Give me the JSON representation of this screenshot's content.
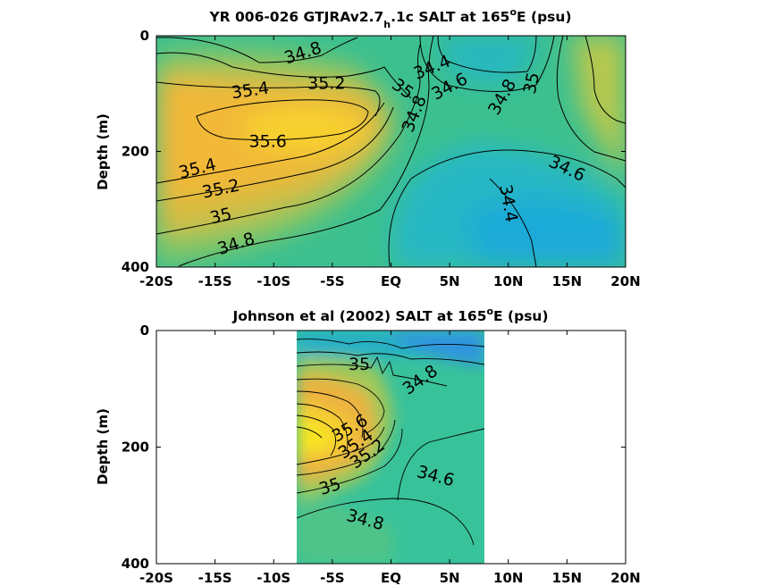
{
  "chart_data": [
    {
      "type": "heatmap",
      "title_main": "YR 006-026 GTJRAv2.7",
      "title_sub": "h",
      "title_mid": ".1c SALT at 165",
      "title_sup": "o",
      "title_end": "E (psu)",
      "ylabel": "Depth (m)",
      "xlim": [
        -20,
        20
      ],
      "ylim": [
        0,
        400
      ],
      "y_reversed": true,
      "x_ticks": [
        -20,
        -15,
        -10,
        -5,
        0,
        5,
        10,
        15,
        20
      ],
      "x_tick_labels": [
        "-20S",
        "-15S",
        "-10S",
        "-5S",
        "EQ",
        "5N",
        "10N",
        "15N",
        "20N"
      ],
      "y_ticks": [
        0,
        200,
        400
      ],
      "y_tick_labels": [
        "0",
        "200",
        "400"
      ],
      "data_extent_x": [
        -20,
        20
      ],
      "colormap": "parula",
      "contour_interval": 0.2,
      "contour_labels": [
        {
          "x": -7.5,
          "y": 30,
          "text": "34.8",
          "angle": -18
        },
        {
          "x": -12,
          "y": 95,
          "text": "35.4",
          "angle": -8
        },
        {
          "x": -5.5,
          "y": 83,
          "text": "35.2",
          "angle": 0
        },
        {
          "x": 3.5,
          "y": 55,
          "text": "34.4",
          "angle": -22
        },
        {
          "x": 5,
          "y": 88,
          "text": "34.6",
          "angle": -28
        },
        {
          "x": 1,
          "y": 92,
          "text": "35",
          "angle": 35
        },
        {
          "x": 9.5,
          "y": 106,
          "text": "34.8",
          "angle": -60
        },
        {
          "x": 12,
          "y": 82,
          "text": "35",
          "angle": -78
        },
        {
          "x": 2,
          "y": 135,
          "text": "34.8",
          "angle": -68
        },
        {
          "x": -10.5,
          "y": 183,
          "text": "35.6",
          "angle": 0
        },
        {
          "x": -16.5,
          "y": 230,
          "text": "35.4",
          "angle": -14
        },
        {
          "x": -14.5,
          "y": 265,
          "text": "35.2",
          "angle": -12
        },
        {
          "x": -14.5,
          "y": 312,
          "text": "35",
          "angle": -14
        },
        {
          "x": -13.2,
          "y": 360,
          "text": "34.8",
          "angle": -18
        },
        {
          "x": 15,
          "y": 230,
          "text": "34.6",
          "angle": 25
        },
        {
          "x": 10,
          "y": 290,
          "text": "34.4",
          "angle": 80
        }
      ],
      "colored_regions": [
        {
          "name": "high-salinity-core",
          "color": "#f5c530"
        },
        {
          "name": "fresh-pool",
          "color": "#22aadd"
        }
      ]
    },
    {
      "type": "heatmap",
      "title_main": "Johnson et al (2002) SALT at 165",
      "title_sup": "o",
      "title_end": "E (psu)",
      "ylabel": "Depth (m)",
      "xlim": [
        -20,
        20
      ],
      "ylim": [
        0,
        400
      ],
      "y_reversed": true,
      "x_ticks": [
        -20,
        -15,
        -10,
        -5,
        0,
        5,
        10,
        15,
        20
      ],
      "x_tick_labels": [
        "-20S",
        "-15S",
        "-10S",
        "-5S",
        "EQ",
        "5N",
        "10N",
        "15N",
        "20N"
      ],
      "y_ticks": [
        0,
        200,
        400
      ],
      "y_tick_labels": [
        "0",
        "200",
        "400"
      ],
      "data_extent_x": [
        -8,
        8
      ],
      "colormap": "parula",
      "contour_interval": 0.2,
      "contour_labels": [
        {
          "x": -2.7,
          "y": 58,
          "text": "35",
          "angle": 0
        },
        {
          "x": 2.5,
          "y": 85,
          "text": "34.8",
          "angle": -35
        },
        {
          "x": -3.5,
          "y": 168,
          "text": "35.6",
          "angle": -30
        },
        {
          "x": -3,
          "y": 195,
          "text": "35.4",
          "angle": -35
        },
        {
          "x": -2,
          "y": 212,
          "text": "35.2",
          "angle": -35
        },
        {
          "x": -5.2,
          "y": 268,
          "text": "35",
          "angle": -18
        },
        {
          "x": 3.8,
          "y": 250,
          "text": "34.6",
          "angle": 15
        },
        {
          "x": -2.2,
          "y": 325,
          "text": "34.8",
          "angle": 15
        }
      ],
      "colored_regions": [
        {
          "name": "high-salinity-core",
          "color": "#f8e020"
        },
        {
          "name": "fresh-surface",
          "color": "#2f8fe0"
        }
      ]
    }
  ]
}
